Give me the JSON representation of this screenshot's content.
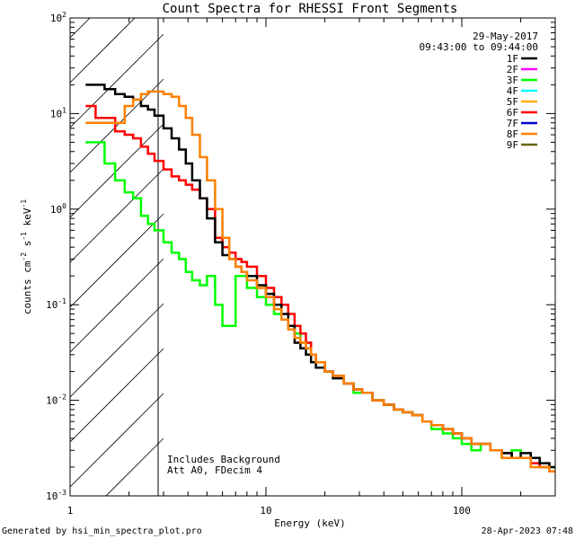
{
  "chart_data": {
    "type": "line",
    "title": "Count Spectra for RHESSI Front Segments",
    "xlabel": "Energy (keV)",
    "ylabel_main": "counts cm",
    "ylabel_sup1": "-2",
    "ylabel_mid": " s",
    "ylabel_sup2": "-1",
    "ylabel_end": " keV",
    "ylabel_sup3": "-1",
    "x_scale": "log",
    "y_scale": "log",
    "xlim": [
      1,
      300
    ],
    "ylim": [
      0.001,
      100
    ],
    "x_ticks": [
      {
        "value": 1,
        "label": "1"
      },
      {
        "value": 10,
        "label": "10"
      },
      {
        "value": 100,
        "label": "100"
      }
    ],
    "y_ticks": [
      {
        "value": 0.001,
        "mantissa": "10",
        "exp": "-3"
      },
      {
        "value": 0.01,
        "mantissa": "10",
        "exp": "-2"
      },
      {
        "value": 0.1,
        "mantissa": "10",
        "exp": "-1"
      },
      {
        "value": 1,
        "mantissa": "10",
        "exp": "0"
      },
      {
        "value": 10,
        "mantissa": "10",
        "exp": "1"
      },
      {
        "value": 100,
        "mantissa": "10",
        "exp": "2"
      }
    ],
    "shaded_region_keV": [
      1,
      3
    ],
    "annotations": {
      "date": "29-May-2017",
      "time_range": "09:43:00 to 09:44:00",
      "bg_note": "Includes Background",
      "att_note": "Att A0, FDecim 4"
    },
    "legend": [
      {
        "label": "1F",
        "color": "#000000"
      },
      {
        "label": "2F",
        "color": "#ff00ff"
      },
      {
        "label": "3F",
        "color": "#00ff00"
      },
      {
        "label": "4F",
        "color": "#00ffff"
      },
      {
        "label": "5F",
        "color": "#ffb000"
      },
      {
        "label": "6F",
        "color": "#ff0000"
      },
      {
        "label": "7F",
        "color": "#0000cc"
      },
      {
        "label": "8F",
        "color": "#ff8000"
      },
      {
        "label": "9F",
        "color": "#666600"
      }
    ],
    "series": [
      {
        "name": "3F",
        "color": "#00ff00",
        "x": [
          1.2,
          1.35,
          1.5,
          1.7,
          1.9,
          2.1,
          2.3,
          2.5,
          2.7,
          3.0,
          3.3,
          3.6,
          3.9,
          4.2,
          4.6,
          5.0,
          5.5,
          6.0,
          6.5,
          7,
          7.5,
          8,
          9,
          10,
          11,
          12,
          13,
          14,
          15,
          16,
          17,
          18,
          20,
          22,
          25,
          28,
          31,
          35,
          40,
          45,
          50,
          56,
          63,
          70,
          80,
          90,
          100,
          112,
          125,
          140,
          160,
          180,
          200,
          225,
          250,
          280
        ],
        "values": [
          5.0,
          5.0,
          3.0,
          2.0,
          1.5,
          1.3,
          0.85,
          0.7,
          0.6,
          0.45,
          0.35,
          0.3,
          0.22,
          0.18,
          0.16,
          0.2,
          0.1,
          0.06,
          0.06,
          0.2,
          0.2,
          0.15,
          0.12,
          0.1,
          0.08,
          0.07,
          0.06,
          0.05,
          0.04,
          0.04,
          0.03,
          0.025,
          0.02,
          0.018,
          0.015,
          0.012,
          0.012,
          0.01,
          0.009,
          0.008,
          0.0075,
          0.007,
          0.006,
          0.005,
          0.0045,
          0.004,
          0.0035,
          0.003,
          0.0035,
          0.003,
          0.0025,
          0.003,
          0.0025,
          0.0025,
          0.002,
          0.002
        ]
      },
      {
        "name": "6F",
        "color": "#ff0000",
        "x": [
          1.2,
          1.35,
          1.5,
          1.7,
          1.9,
          2.1,
          2.3,
          2.5,
          2.7,
          3.0,
          3.3,
          3.6,
          3.9,
          4.2,
          4.6,
          5.0,
          5.5,
          6.0,
          6.5,
          7,
          7.5,
          8,
          9,
          10,
          11,
          12,
          13,
          14,
          15,
          16,
          17,
          18,
          20,
          22,
          25,
          28,
          31,
          35,
          40,
          45,
          50,
          56,
          63,
          70,
          80,
          90,
          100,
          112,
          125,
          140,
          160,
          180,
          200,
          225,
          250,
          280
        ],
        "values": [
          12,
          9,
          9,
          6.5,
          6,
          5.5,
          4.5,
          3.8,
          3.2,
          2.6,
          2.2,
          2.0,
          1.8,
          1.6,
          1.3,
          1.0,
          0.5,
          0.4,
          0.35,
          0.3,
          0.28,
          0.25,
          0.2,
          0.15,
          0.12,
          0.1,
          0.08,
          0.06,
          0.05,
          0.04,
          0.03,
          0.025,
          0.02,
          0.018,
          0.015,
          0.013,
          0.012,
          0.01,
          0.009,
          0.008,
          0.0075,
          0.007,
          0.006,
          0.0055,
          0.005,
          0.0045,
          0.004,
          0.0035,
          0.0035,
          0.003,
          0.0028,
          0.0025,
          0.0025,
          0.0022,
          0.002,
          0.0018
        ]
      },
      {
        "name": "1F",
        "color": "#000000",
        "x": [
          1.2,
          1.35,
          1.5,
          1.7,
          1.9,
          2.1,
          2.3,
          2.5,
          2.7,
          3.0,
          3.3,
          3.6,
          3.9,
          4.2,
          4.6,
          5.0,
          5.5,
          6.0,
          6.5,
          7,
          7.5,
          8,
          9,
          10,
          11,
          12,
          13,
          14,
          15,
          16,
          17,
          18,
          20,
          22,
          25,
          28,
          31,
          35,
          40,
          45,
          50,
          56,
          63,
          70,
          80,
          90,
          100,
          112,
          125,
          140,
          160,
          180,
          200,
          225,
          250,
          280
        ],
        "values": [
          20,
          20,
          18,
          16,
          15,
          14,
          12,
          11,
          9.5,
          7,
          5.5,
          4.2,
          3.0,
          2.0,
          1.3,
          0.8,
          0.45,
          0.33,
          0.3,
          0.25,
          0.22,
          0.2,
          0.16,
          0.13,
          0.1,
          0.08,
          0.06,
          0.04,
          0.035,
          0.03,
          0.025,
          0.022,
          0.02,
          0.017,
          0.015,
          0.013,
          0.012,
          0.01,
          0.009,
          0.008,
          0.0075,
          0.007,
          0.006,
          0.0055,
          0.005,
          0.0045,
          0.004,
          0.0035,
          0.0035,
          0.003,
          0.0028,
          0.0025,
          0.0028,
          0.0025,
          0.0022,
          0.002
        ]
      },
      {
        "name": "8F",
        "color": "#ff8000",
        "x": [
          1.2,
          1.35,
          1.5,
          1.7,
          1.9,
          2.1,
          2.3,
          2.5,
          2.7,
          3.0,
          3.3,
          3.6,
          3.9,
          4.2,
          4.6,
          5.0,
          5.5,
          6.0,
          6.5,
          7,
          7.5,
          8,
          9,
          10,
          11,
          12,
          13,
          14,
          15,
          16,
          17,
          18,
          20,
          22,
          25,
          28,
          31,
          35,
          40,
          45,
          50,
          56,
          63,
          70,
          80,
          90,
          100,
          112,
          125,
          140,
          160,
          180,
          200,
          225,
          250,
          280
        ],
        "values": [
          8,
          8,
          8,
          8,
          12,
          14,
          16,
          17,
          17,
          16,
          15,
          12,
          9,
          6,
          3.5,
          2.0,
          1.0,
          0.5,
          0.3,
          0.25,
          0.22,
          0.18,
          0.15,
          0.12,
          0.09,
          0.07,
          0.055,
          0.045,
          0.04,
          0.035,
          0.03,
          0.025,
          0.02,
          0.018,
          0.015,
          0.013,
          0.012,
          0.01,
          0.009,
          0.008,
          0.0075,
          0.007,
          0.006,
          0.0055,
          0.005,
          0.0045,
          0.004,
          0.0035,
          0.0035,
          0.003,
          0.0025,
          0.0025,
          0.0025,
          0.002,
          0.002,
          0.0018
        ]
      }
    ]
  },
  "footer": {
    "generated": "Generated by hsi_min_spectra_plot.pro",
    "timestamp": "28-Apr-2023 07:48"
  }
}
